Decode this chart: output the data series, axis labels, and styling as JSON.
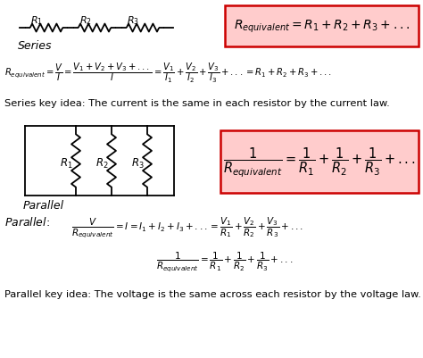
{
  "bg_color": "#ffffff",
  "pink_box_color": "#ffcccc",
  "pink_box_edge": "#cc0000",
  "text_color": "#000000",
  "fig_width": 4.74,
  "fig_height": 4.02,
  "dpi": 100,
  "series_label": "Series",
  "parallel_label": "Parallel",
  "series_key": "Series key idea: The current is the same in each resistor by the current law.",
  "parallel_key": "Parallel key idea: The voltage is the same across each resistor by the voltage law."
}
